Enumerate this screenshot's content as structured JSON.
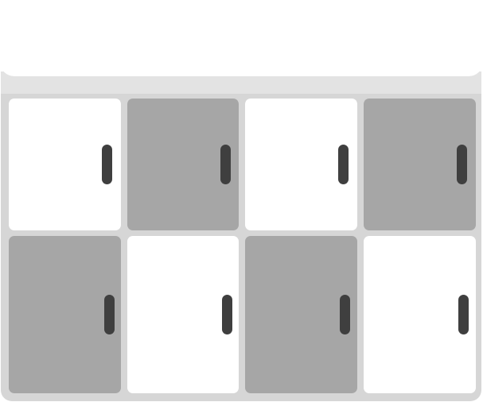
{
  "scene": {
    "name": "cabinet-with-doors",
    "rows": [
      {
        "doors": [
          {
            "id": "door-1-1",
            "tone": "light",
            "handle_side": "right"
          },
          {
            "id": "door-1-2",
            "tone": "dark",
            "handle_side": "right"
          },
          {
            "id": "door-1-3",
            "tone": "light",
            "handle_side": "right"
          },
          {
            "id": "door-1-4",
            "tone": "dark",
            "handle_side": "right"
          }
        ]
      },
      {
        "doors": [
          {
            "id": "door-2-1",
            "tone": "dark",
            "handle_side": "right"
          },
          {
            "id": "door-2-2",
            "tone": "light",
            "handle_side": "right"
          },
          {
            "id": "door-2-3",
            "tone": "dark",
            "handle_side": "right"
          },
          {
            "id": "door-2-4",
            "tone": "light",
            "handle_side": "right"
          }
        ]
      }
    ]
  },
  "colors": {
    "light_door": "#ffffff",
    "dark_door": "#a6a6a6",
    "cabinet_frame": "#d6d6d6",
    "counter_band": "#e3e3e3",
    "handle": "#3f3f3f"
  }
}
